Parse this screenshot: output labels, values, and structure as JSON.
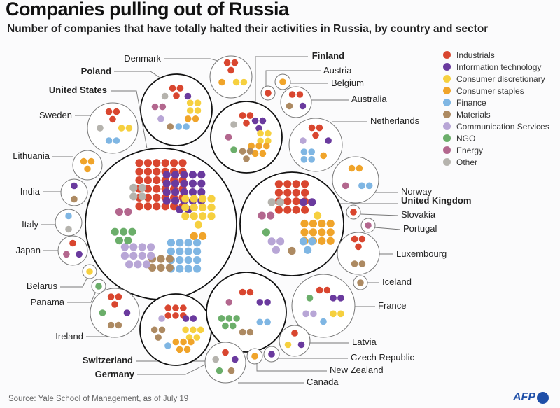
{
  "title": "Companies pulling out of Russia",
  "subtitle": "Number of companies that have totally halted their activities in Russia, by country and sector",
  "source": "Source: Yale School of Management, as of July 19",
  "logo": "AFP",
  "chart_data": {
    "type": "bubble-dot-matrix",
    "title": "Companies pulling out of Russia",
    "subtitle": "Number of companies that have totally halted their activities in Russia, by country and sector",
    "sectors": [
      {
        "key": "ind",
        "name": "Industrials",
        "color": "#d9462f"
      },
      {
        "key": "it",
        "name": "Information technology",
        "color": "#6a3a9e"
      },
      {
        "key": "cd",
        "name": "Consumer discretionary",
        "color": "#f6d03f"
      },
      {
        "key": "cs",
        "name": "Consumer staples",
        "color": "#f0a42a"
      },
      {
        "key": "fin",
        "name": "Finance",
        "color": "#7fb6e3"
      },
      {
        "key": "mat",
        "name": "Materials",
        "color": "#ad8a62"
      },
      {
        "key": "com",
        "name": "Communication Services",
        "color": "#b8a6d6"
      },
      {
        "key": "ngo",
        "name": "NGO",
        "color": "#6bae6a"
      },
      {
        "key": "en",
        "name": "Energy",
        "color": "#b3678e"
      },
      {
        "key": "oth",
        "name": "Other",
        "color": "#b5b3ad"
      }
    ],
    "legend_position": "top-right",
    "countries": [
      {
        "name": "United States",
        "bold": true,
        "counts": {
          "it": 22,
          "fin": 16,
          "ind": 36,
          "cd": 13,
          "com": 11,
          "mat": 6,
          "oth": 4,
          "en": 2,
          "ngo": 5,
          "cs": 2
        }
      },
      {
        "name": "United Kingdom",
        "bold": true,
        "counts": {
          "cs": 12,
          "mat": 1,
          "fin": 3,
          "com": 3,
          "oth": 2,
          "it": 2,
          "en": 2,
          "ind": 16,
          "cd": 1,
          "ngo": 1
        }
      },
      {
        "name": "Poland",
        "bold": true,
        "counts": {
          "com": 1,
          "ind": 3,
          "it": 1,
          "fin": 2,
          "oth": 1,
          "en": 2,
          "cd": 4,
          "mat": 1,
          "cs": 2
        }
      },
      {
        "name": "Finland",
        "bold": true,
        "counts": {
          "en": 1,
          "cs": 5,
          "ind": 3,
          "ngo": 1,
          "oth": 1,
          "it": 3,
          "mat": 3,
          "cd": 4
        }
      },
      {
        "name": "Germany",
        "bold": true,
        "counts": {
          "cd": 5,
          "cs": 5,
          "ind": 6,
          "fin": 1,
          "com": 1,
          "it": 2,
          "mat": 3
        }
      },
      {
        "name": "Switzerland",
        "bold": true,
        "counts": {
          "ngo": 5,
          "mat": 2,
          "it": 2,
          "en": 1,
          "ind": 2,
          "fin": 2
        }
      },
      {
        "name": "Denmark",
        "bold": false,
        "counts": {
          "ind": 3,
          "cd": 2,
          "cs": 1
        }
      },
      {
        "name": "Austria",
        "bold": false,
        "counts": {
          "ind": 1
        }
      },
      {
        "name": "Belgium",
        "bold": false,
        "counts": {
          "cs": 1
        }
      },
      {
        "name": "Australia",
        "bold": false,
        "counts": {
          "mat": 1,
          "it": 1,
          "ind": 2
        }
      },
      {
        "name": "Netherlands",
        "bold": false,
        "counts": {
          "ind": 3,
          "com": 1,
          "cs": 1,
          "it": 1,
          "fin": 4
        }
      },
      {
        "name": "Norway",
        "bold": false,
        "counts": {
          "cs": 2,
          "fin": 2,
          "en": 1
        }
      },
      {
        "name": "Slovakia",
        "bold": false,
        "counts": {
          "ind": 1
        }
      },
      {
        "name": "Portugal",
        "bold": false,
        "counts": {
          "en": 1
        }
      },
      {
        "name": "Luxembourg",
        "bold": false,
        "counts": {
          "mat": 2,
          "ind": 3
        }
      },
      {
        "name": "Iceland",
        "bold": false,
        "counts": {
          "mat": 1
        }
      },
      {
        "name": "France",
        "bold": false,
        "counts": {
          "ind": 2,
          "com": 2,
          "ngo": 1,
          "fin": 1,
          "it": 2,
          "cd": 2
        }
      },
      {
        "name": "Latvia",
        "bold": false,
        "counts": {
          "ind": 1,
          "cd": 1,
          "it": 1
        }
      },
      {
        "name": "Czech Republic",
        "bold": false,
        "counts": {
          "it": 1
        }
      },
      {
        "name": "New Zealand",
        "bold": false,
        "counts": {
          "cs": 1
        }
      },
      {
        "name": "Canada",
        "bold": false,
        "counts": {
          "oth": 1,
          "it": 1,
          "ind": 1,
          "mat": 1,
          "ngo": 1
        }
      },
      {
        "name": "Sweden",
        "bold": false,
        "counts": {
          "fin": 2,
          "cd": 2,
          "oth": 1,
          "ind": 3
        }
      },
      {
        "name": "Lithuania",
        "bold": false,
        "counts": {
          "cs": 3
        }
      },
      {
        "name": "India",
        "bold": false,
        "counts": {
          "mat": 1,
          "it": 1
        }
      },
      {
        "name": "Italy",
        "bold": false,
        "counts": {
          "fin": 1,
          "oth": 1
        }
      },
      {
        "name": "Japan",
        "bold": false,
        "counts": {
          "ind": 1,
          "en": 1,
          "it": 1
        }
      },
      {
        "name": "Belarus",
        "bold": false,
        "counts": {
          "cd": 1
        }
      },
      {
        "name": "Panama",
        "bold": false,
        "counts": {
          "ngo": 1
        }
      },
      {
        "name": "Ireland",
        "bold": false,
        "counts": {
          "ngo": 1,
          "ind": 3,
          "mat": 2,
          "it": 1
        }
      }
    ]
  }
}
